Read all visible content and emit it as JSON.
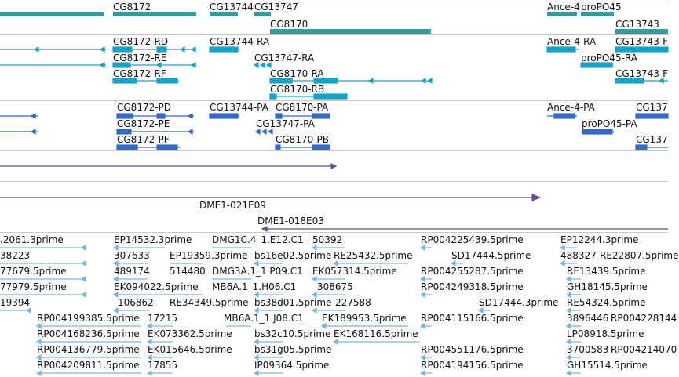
{
  "colors": {
    "gene": "#2f9ea0",
    "transcript": "#1aa2c4",
    "protein": "#3469c9",
    "clone": "#6a4c9c",
    "est": "#7eb6da",
    "separator": "#c8c8c8"
  },
  "tracks": {
    "genes": [
      "CG8172",
      "CG13744",
      "CG13747",
      "CG8170",
      "Ance-4",
      "proPO45",
      "CG13743"
    ],
    "transcripts": [
      "CG8172-RD",
      "CG8172-RE",
      "CG8172-RF",
      "CG13744-RA",
      "CG13747-RA",
      "CG8170-RA",
      "CG8170-RB",
      "Ance-4-RA",
      "proPO45-RA",
      "CG13743-F",
      "CG13743-F"
    ],
    "proteins": [
      "CG8172-PD",
      "CG8172-PE",
      "CG8172-PF",
      "CG13744-PA",
      "CG8170-PA",
      "CG13747-PA",
      "CG8170-PB",
      "Ance-4-PA",
      "proPO45-PA",
      "CG137",
      "CG137"
    ],
    "clones": [
      "DME1-021E09",
      "DME1-018E03"
    ],
    "ests": [
      ".2061.3prime",
      "EP14532.3prime",
      "DMG1C.4_1.E12.C1",
      "50392",
      "RP004225439.5prime",
      "EP12244.3prime",
      "38223",
      "307633",
      "EP19359.3prime",
      "bs16e02.5prime",
      "RE25432.5prime",
      "SD17444.5prime",
      "488327",
      "RE22807.5prime",
      "77679.5prime",
      "489174",
      "514480",
      "DMG3A.1_1.P09.C1",
      "EK057314.5prime",
      "RP004255287.5prime",
      "RE13439.5prime",
      "77979.5prime",
      "EK094022.5prime",
      "MB6A.1_1.H06.C1",
      "308675",
      "RP004249318.5prime",
      "GH18145.5prime",
      "19394",
      "106862",
      "RE34349.5prime",
      "bs38d01.5prime",
      "227588",
      "SD17444.3prime",
      "RE54324.5prime",
      "RP004199385.5prime",
      "17215",
      "MB6A.1_1.J08.C1",
      "EK189953.5prime",
      "RP004115166.5prime",
      "3896446",
      "RP004228144",
      "RP004168236.5prime",
      "EK073362.5prime",
      "bs32c10.5prime",
      "EK168116.5prime",
      "LP08918.5prime",
      "RP004136779.5prime",
      "EK015646.5prime",
      "bs31g05.5prime",
      "RP004551176.5prime",
      "3700583",
      "RP004214070",
      "RP004209811.5prime",
      "17855",
      "IP09364.5prime",
      "RP004194156.5prime",
      "GH15514.5prime"
    ]
  }
}
